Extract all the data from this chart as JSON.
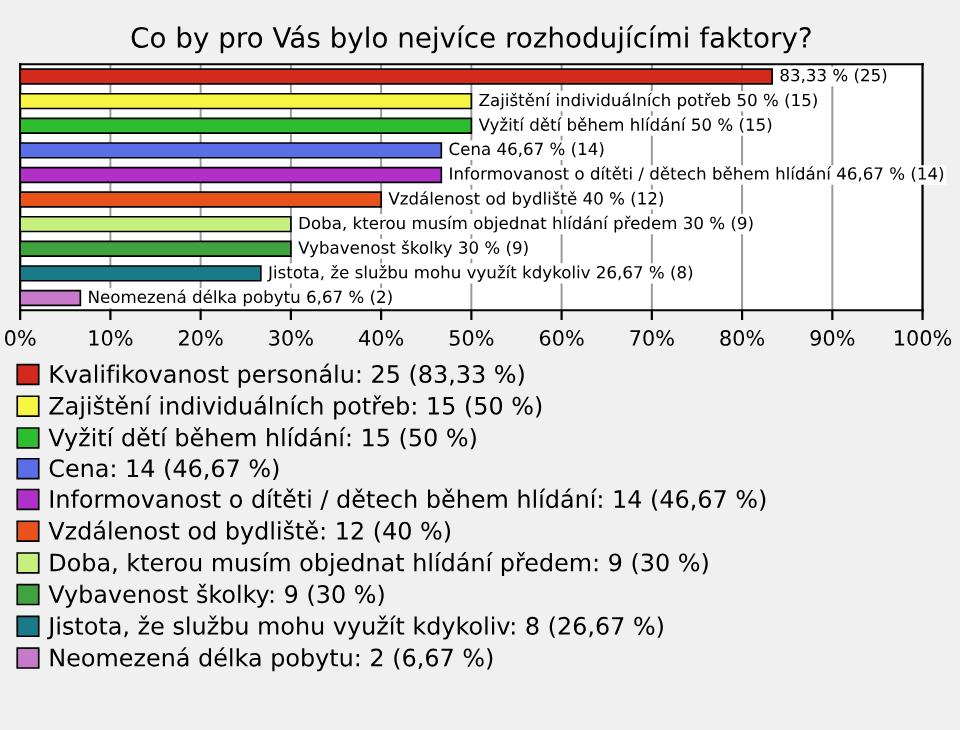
{
  "chart_data": {
    "type": "bar",
    "orientation": "horizontal",
    "title": "Co by pro Vás bylo nejvíce rozhodujícími faktory?",
    "categories": [
      null,
      null,
      null,
      null,
      null,
      null,
      null,
      null,
      null,
      null
    ],
    "series": [
      {
        "name": "Kvalifikovanost personálu: 25 (83,33 %)",
        "color": "#d42a1e",
        "values": [
          83.33,
          null,
          null,
          null,
          null,
          null,
          null,
          null,
          null,
          null
        ],
        "value_labels": [
          "83,33 % (25)",
          null,
          null,
          null,
          null,
          null,
          null,
          null,
          null,
          null
        ]
      },
      {
        "name": "Zajištění individuálních potřeb: 15 (50 %)",
        "color": "#f5f542",
        "values": [
          null,
          50,
          null,
          null,
          null,
          null,
          null,
          null,
          null,
          null
        ],
        "value_labels": [
          null,
          "Zajištění individuálních potřeb 50 % (15)",
          null,
          null,
          null,
          null,
          null,
          null,
          null,
          null
        ]
      },
      {
        "name": "Vyžití dětí během hlídání: 15 (50 %)",
        "color": "#2ebd2e",
        "values": [
          null,
          null,
          50,
          null,
          null,
          null,
          null,
          null,
          null,
          null
        ],
        "value_labels": [
          null,
          null,
          "Vyžití dětí během hlídání 50 % (15)",
          null,
          null,
          null,
          null,
          null,
          null,
          null
        ]
      },
      {
        "name": "Cena: 14 (46,67 %)",
        "color": "#5a6fe6",
        "values": [
          null,
          null,
          null,
          46.67,
          null,
          null,
          null,
          null,
          null,
          null
        ],
        "value_labels": [
          null,
          null,
          null,
          "Cena 46,67 % (14)",
          null,
          null,
          null,
          null,
          null,
          null
        ]
      },
      {
        "name": "Informovanost o dítěti / dětech během hlídání: 14 (46,67 %)",
        "color": "#b030c8",
        "values": [
          null,
          null,
          null,
          null,
          46.67,
          null,
          null,
          null,
          null,
          null
        ],
        "value_labels": [
          null,
          null,
          null,
          null,
          "Informovanost o dítěti / dětech během hlídání 46,67 % (14)",
          null,
          null,
          null,
          null,
          null
        ]
      },
      {
        "name": "Vzdálenost od bydliště: 12 (40 %)",
        "color": "#e8531c",
        "values": [
          null,
          null,
          null,
          null,
          null,
          40,
          null,
          null,
          null,
          null
        ],
        "value_labels": [
          null,
          null,
          null,
          null,
          null,
          "Vzdálenost od bydliště 40 % (12)",
          null,
          null,
          null,
          null
        ]
      },
      {
        "name": "Doba, kterou musím objednat hlídání předem: 9 (30 %)",
        "color": "#c6ef7e",
        "values": [
          null,
          null,
          null,
          null,
          null,
          null,
          30,
          null,
          null,
          null
        ],
        "value_labels": [
          null,
          null,
          null,
          null,
          null,
          null,
          "Doba, kterou musím objednat hlídání předem 30 % (9)",
          null,
          null,
          null
        ]
      },
      {
        "name": "Vybavenost školky: 9 (30 %)",
        "color": "#3fa33f",
        "values": [
          null,
          null,
          null,
          null,
          null,
          null,
          null,
          30,
          null,
          null
        ],
        "value_labels": [
          null,
          null,
          null,
          null,
          null,
          null,
          null,
          "Vybavenost školky 30 % (9)",
          null,
          null
        ]
      },
      {
        "name": "Jistota, že službu mohu využít kdykoliv: 8 (26,67 %)",
        "color": "#1a7a8a",
        "values": [
          null,
          null,
          null,
          null,
          null,
          null,
          null,
          null,
          26.67,
          null
        ],
        "value_labels": [
          null,
          null,
          null,
          null,
          null,
          null,
          null,
          null,
          "Jistota, že službu mohu využít kdykoliv 26,67 % (8)",
          null
        ]
      },
      {
        "name": "Neomezená délka pobytu: 2 (6,67 %)",
        "color": "#c77ac9",
        "values": [
          null,
          null,
          null,
          null,
          null,
          null,
          null,
          null,
          null,
          6.67
        ],
        "value_labels": [
          null,
          null,
          null,
          null,
          null,
          null,
          null,
          null,
          null,
          "Neomezená délka pobytu 6,67 % (2)"
        ]
      }
    ],
    "xlim": [
      0,
      100
    ],
    "xticks": [
      {
        "value": 0,
        "label": "0%"
      },
      {
        "value": 10,
        "label": "10%"
      },
      {
        "value": 20,
        "label": "20%"
      },
      {
        "value": 30,
        "label": "30%"
      },
      {
        "value": 40,
        "label": "40%"
      },
      {
        "value": 50,
        "label": "50%"
      },
      {
        "value": 60,
        "label": "60%"
      },
      {
        "value": 70,
        "label": "70%"
      },
      {
        "value": 80,
        "label": "80%"
      },
      {
        "value": 90,
        "label": "90%"
      },
      {
        "value": 100,
        "label": "100%"
      }
    ],
    "grid": "x",
    "legend": "bottom"
  }
}
